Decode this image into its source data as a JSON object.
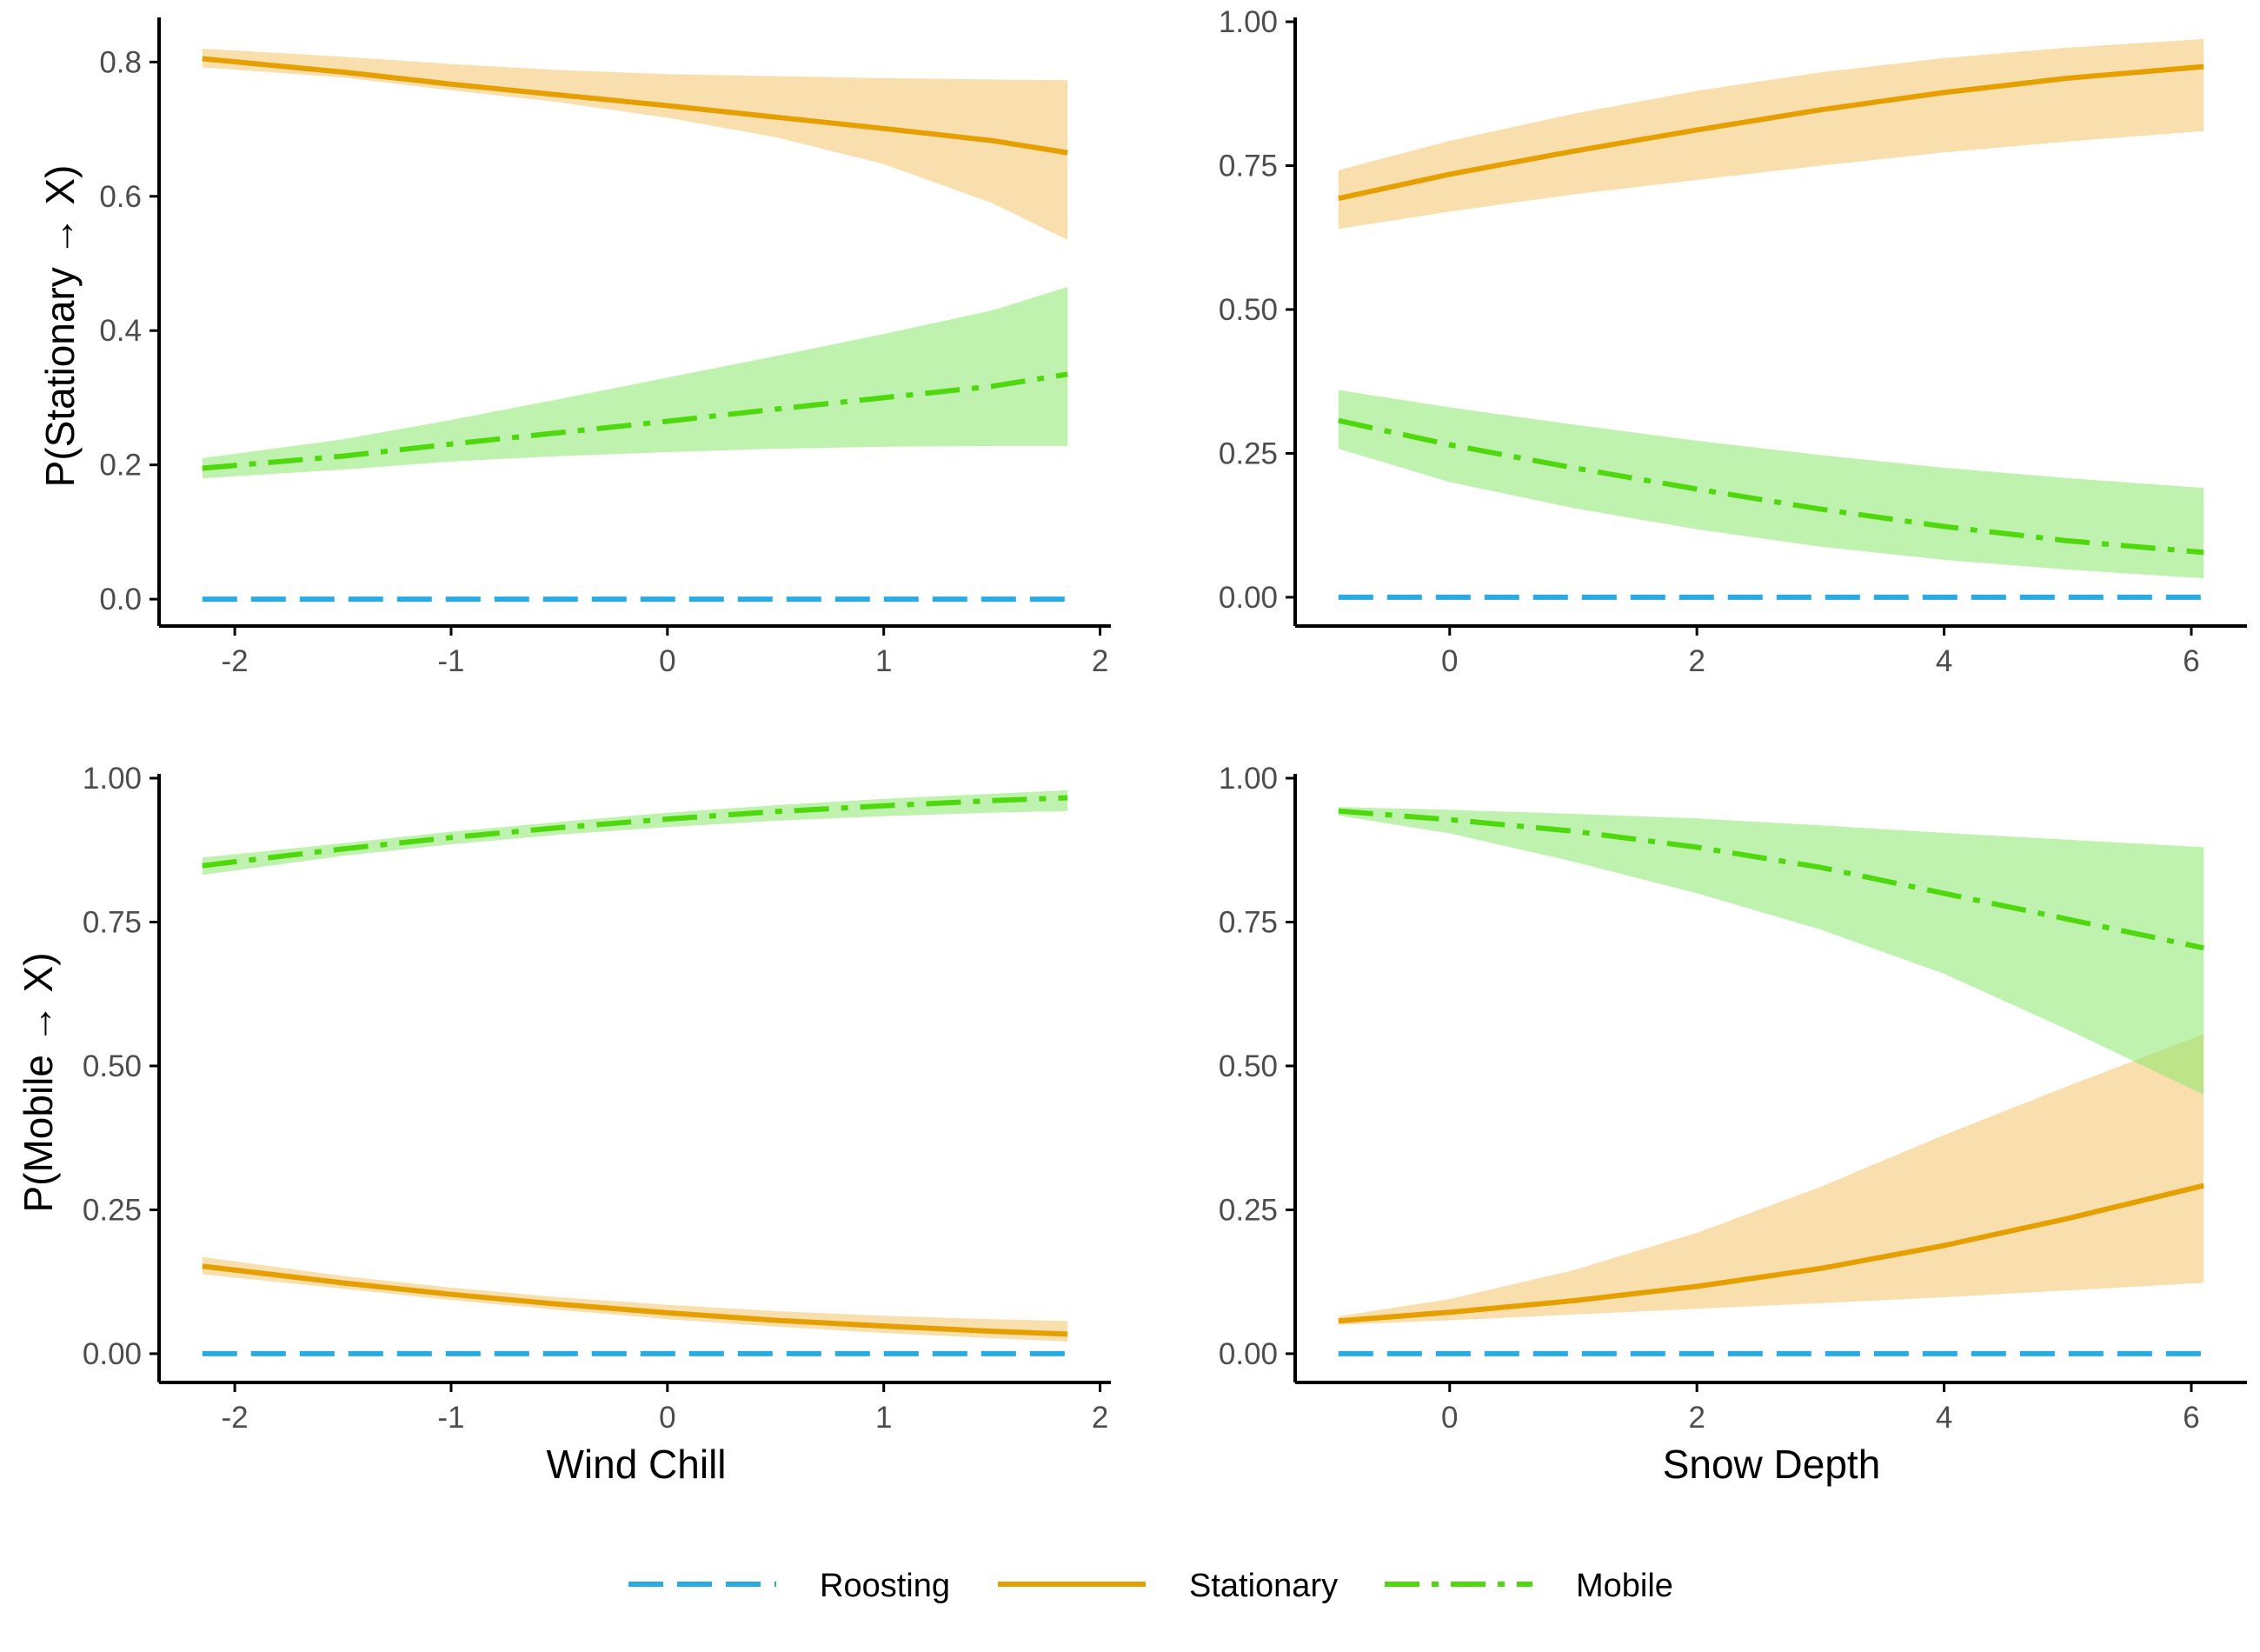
{
  "colors": {
    "roosting": "#29ABE2",
    "stationary": "#E69F00",
    "mobile": "#4FD80E",
    "stationary_band": "#F5C46B",
    "mobile_band": "#8BE86B",
    "axis": "#000000",
    "tick_text": "#4d4d4d"
  },
  "legend": {
    "items": [
      {
        "key": "roosting",
        "label": "Roosting",
        "dash": "dashed"
      },
      {
        "key": "stationary",
        "label": "Stationary",
        "dash": "solid"
      },
      {
        "key": "mobile",
        "label": "Mobile",
        "dash": "dotdash"
      }
    ],
    "position": "bottom"
  },
  "chart_data": [
    {
      "type": "line",
      "panel": "top-left",
      "xlabel": "",
      "ylabel": "P(Stationary → X)",
      "xlim": [
        -2.35,
        2.05
      ],
      "ylim": [
        -0.04,
        0.86
      ],
      "xticks": [
        -2,
        -1,
        0,
        1,
        2
      ],
      "xtick_labels": [
        "-2",
        "-1",
        "0",
        "1",
        "2"
      ],
      "yticks": [
        0,
        0.2,
        0.4,
        0.6,
        0.8
      ],
      "ytick_labels": [
        "0.0",
        "0.2",
        "0.4",
        "0.6",
        "0.8"
      ],
      "x": [
        -2.15,
        -1.5,
        -1.0,
        -0.5,
        0.0,
        0.5,
        1.0,
        1.5,
        1.85
      ],
      "series": [
        {
          "name": "Roosting",
          "key": "roosting",
          "values": [
            0,
            0,
            0,
            0,
            0,
            0,
            0,
            0,
            0
          ]
        },
        {
          "name": "Stationary",
          "key": "stationary",
          "values": [
            0.805,
            0.785,
            0.767,
            0.751,
            0.735,
            0.718,
            0.701,
            0.683,
            0.665
          ],
          "lower": [
            0.792,
            0.777,
            0.758,
            0.74,
            0.717,
            0.688,
            0.648,
            0.59,
            0.535
          ],
          "upper": [
            0.82,
            0.808,
            0.797,
            0.788,
            0.782,
            0.779,
            0.776,
            0.774,
            0.773
          ]
        },
        {
          "name": "Mobile",
          "key": "mobile",
          "values": [
            0.195,
            0.213,
            0.231,
            0.248,
            0.265,
            0.283,
            0.3,
            0.317,
            0.335
          ],
          "lower": [
            0.18,
            0.193,
            0.205,
            0.213,
            0.219,
            0.224,
            0.227,
            0.228,
            0.228
          ],
          "upper": [
            0.21,
            0.238,
            0.267,
            0.298,
            0.33,
            0.362,
            0.395,
            0.43,
            0.465
          ]
        }
      ]
    },
    {
      "type": "line",
      "panel": "top-right",
      "xlabel": "",
      "ylabel": "",
      "xlim": [
        -1.25,
        6.45
      ],
      "ylim": [
        -0.05,
        1.0
      ],
      "xticks": [
        0,
        2,
        4,
        6
      ],
      "xtick_labels": [
        "0",
        "2",
        "4",
        "6"
      ],
      "yticks": [
        0,
        0.25,
        0.5,
        0.75,
        1.0
      ],
      "ytick_labels": [
        "0.00",
        "0.25",
        "0.50",
        "0.75",
        "1.00"
      ],
      "x": [
        -0.9,
        0.0,
        1.0,
        2.0,
        3.0,
        4.0,
        5.0,
        6.1
      ],
      "series": [
        {
          "name": "Roosting",
          "key": "roosting",
          "values": [
            0,
            0,
            0,
            0,
            0,
            0,
            0,
            0
          ]
        },
        {
          "name": "Stationary",
          "key": "stationary",
          "values": [
            0.693,
            0.735,
            0.775,
            0.812,
            0.847,
            0.877,
            0.902,
            0.922
          ],
          "lower": [
            0.64,
            0.67,
            0.7,
            0.725,
            0.75,
            0.773,
            0.792,
            0.81
          ],
          "upper": [
            0.742,
            0.793,
            0.84,
            0.88,
            0.912,
            0.937,
            0.955,
            0.97
          ]
        },
        {
          "name": "Mobile",
          "key": "mobile",
          "values": [
            0.307,
            0.265,
            0.225,
            0.188,
            0.153,
            0.123,
            0.098,
            0.078
          ],
          "lower": [
            0.258,
            0.2,
            0.155,
            0.118,
            0.088,
            0.065,
            0.048,
            0.033
          ],
          "upper": [
            0.36,
            0.33,
            0.3,
            0.272,
            0.247,
            0.225,
            0.207,
            0.19
          ]
        }
      ]
    },
    {
      "type": "line",
      "panel": "bottom-left",
      "xlabel": "Wind Chill",
      "ylabel": "P(Mobile → X)",
      "xlim": [
        -2.35,
        2.05
      ],
      "ylim": [
        -0.05,
        1.0
      ],
      "xticks": [
        -2,
        -1,
        0,
        1,
        2
      ],
      "xtick_labels": [
        "-2",
        "-1",
        "0",
        "1",
        "2"
      ],
      "yticks": [
        0,
        0.25,
        0.5,
        0.75,
        1.0
      ],
      "ytick_labels": [
        "0.00",
        "0.25",
        "0.50",
        "0.75",
        "1.00"
      ],
      "x": [
        -2.15,
        -1.5,
        -1.0,
        -0.5,
        0.0,
        0.5,
        1.0,
        1.5,
        1.85
      ],
      "series": [
        {
          "name": "Roosting",
          "key": "roosting",
          "values": [
            0,
            0,
            0,
            0,
            0,
            0,
            0,
            0,
            0
          ]
        },
        {
          "name": "Stationary",
          "key": "stationary",
          "values": [
            0.152,
            0.123,
            0.103,
            0.086,
            0.071,
            0.058,
            0.048,
            0.039,
            0.034
          ],
          "lower": [
            0.138,
            0.113,
            0.093,
            0.076,
            0.06,
            0.047,
            0.036,
            0.027,
            0.021
          ],
          "upper": [
            0.168,
            0.135,
            0.115,
            0.098,
            0.085,
            0.074,
            0.066,
            0.06,
            0.057
          ]
        },
        {
          "name": "Mobile",
          "key": "mobile",
          "values": [
            0.848,
            0.877,
            0.897,
            0.914,
            0.929,
            0.942,
            0.952,
            0.961,
            0.966
          ],
          "lower": [
            0.832,
            0.865,
            0.885,
            0.902,
            0.915,
            0.926,
            0.934,
            0.94,
            0.943
          ],
          "upper": [
            0.862,
            0.887,
            0.907,
            0.924,
            0.94,
            0.953,
            0.964,
            0.973,
            0.979
          ]
        }
      ]
    },
    {
      "type": "line",
      "panel": "bottom-right",
      "xlabel": "Snow Depth",
      "ylabel": "",
      "xlim": [
        -1.25,
        6.45
      ],
      "ylim": [
        -0.05,
        1.0
      ],
      "xticks": [
        0,
        2,
        4,
        6
      ],
      "xtick_labels": [
        "0",
        "2",
        "4",
        "6"
      ],
      "yticks": [
        0,
        0.25,
        0.5,
        0.75,
        1.0
      ],
      "ytick_labels": [
        "0.00",
        "0.25",
        "0.50",
        "0.75",
        "1.00"
      ],
      "x": [
        -0.9,
        0.0,
        1.0,
        2.0,
        3.0,
        4.0,
        5.0,
        6.1
      ],
      "series": [
        {
          "name": "Roosting",
          "key": "roosting",
          "values": [
            0,
            0,
            0,
            0,
            0,
            0,
            0,
            0
          ]
        },
        {
          "name": "Stationary",
          "key": "stationary",
          "values": [
            0.057,
            0.072,
            0.092,
            0.117,
            0.148,
            0.188,
            0.235,
            0.292
          ],
          "lower": [
            0.05,
            0.058,
            0.068,
            0.078,
            0.088,
            0.098,
            0.11,
            0.123
          ],
          "upper": [
            0.065,
            0.095,
            0.145,
            0.21,
            0.29,
            0.38,
            0.465,
            0.555
          ]
        },
        {
          "name": "Mobile",
          "key": "mobile",
          "values": [
            0.943,
            0.928,
            0.908,
            0.88,
            0.845,
            0.8,
            0.755,
            0.705
          ],
          "lower": [
            0.935,
            0.904,
            0.855,
            0.8,
            0.737,
            0.66,
            0.563,
            0.45
          ],
          "upper": [
            0.95,
            0.945,
            0.938,
            0.93,
            0.918,
            0.905,
            0.893,
            0.88
          ]
        }
      ]
    }
  ]
}
